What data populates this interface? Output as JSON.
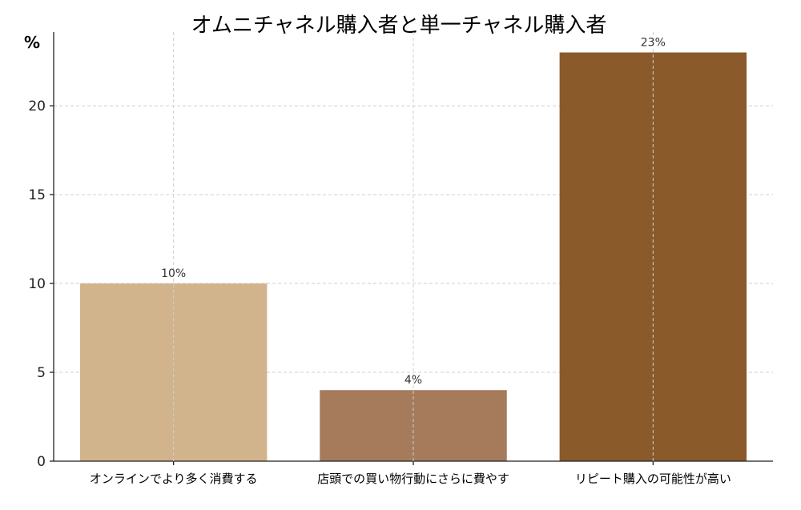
{
  "chart_data": {
    "type": "bar",
    "title": "オムニチャネル購入者と単一チャネル購入者",
    "ylabel": "%",
    "xlabel": "",
    "categories": [
      "オンラインでより多く消費する",
      "店頭での買い物行動にさらに費やす",
      "リピート購入の可能性が高い"
    ],
    "values": [
      10,
      4,
      23
    ],
    "data_labels": [
      "10%",
      "4%",
      "23%"
    ],
    "colors": [
      "#D2B48C",
      "#A67B5B",
      "#8B5A2B"
    ],
    "yticks": [
      0,
      5,
      10,
      15,
      20
    ],
    "ylim": [
      0,
      24.15
    ],
    "grid": true
  }
}
